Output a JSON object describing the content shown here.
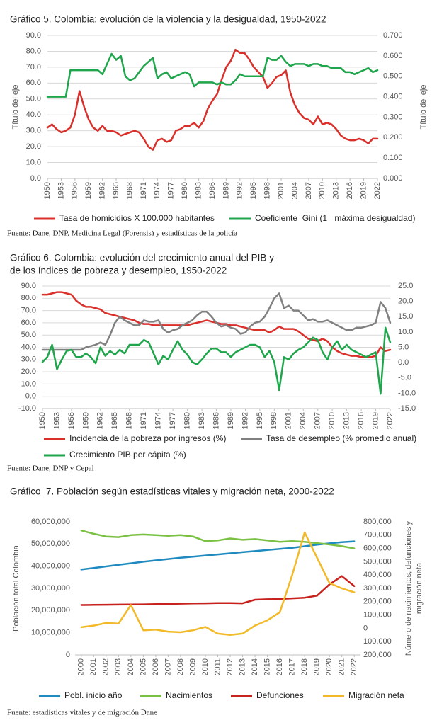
{
  "charts": [
    {
      "type": "line",
      "title": [
        "Gráfico 5. Colombia: evolución de la violencia y la desigualdad, 1950-2022"
      ],
      "y_label": "Título del eje",
      "y2_label": "Título del eje",
      "x": [
        1950,
        1951,
        1952,
        1953,
        1954,
        1955,
        1956,
        1957,
        1958,
        1959,
        1960,
        1961,
        1962,
        1963,
        1964,
        1965,
        1966,
        1967,
        1968,
        1969,
        1970,
        1971,
        1972,
        1973,
        1974,
        1975,
        1976,
        1977,
        1978,
        1979,
        1980,
        1981,
        1982,
        1983,
        1984,
        1985,
        1986,
        1987,
        1988,
        1989,
        1990,
        1991,
        1992,
        1993,
        1994,
        1995,
        1996,
        1997,
        1998,
        1999,
        2000,
        2001,
        2002,
        2003,
        2004,
        2005,
        2006,
        2007,
        2008,
        2009,
        2010,
        2011,
        2012,
        2013,
        2014,
        2015,
        2016,
        2017,
        2018,
        2019,
        2020,
        2021,
        2022
      ],
      "xlim": [
        1950,
        2022
      ],
      "xticks": [
        1950,
        1953,
        1956,
        1959,
        1962,
        1965,
        1968,
        1971,
        1974,
        1977,
        1980,
        1983,
        1986,
        1989,
        1992,
        1995,
        1998,
        2001,
        2004,
        2007,
        2010,
        2013,
        2016,
        2019,
        2022
      ],
      "ylim": [
        0,
        90
      ],
      "yticks": [
        {
          "value": 0,
          "label": "0.0"
        },
        {
          "value": 10,
          "label": "10.0"
        },
        {
          "value": 20,
          "label": "20.0"
        },
        {
          "value": 30,
          "label": "30.0"
        },
        {
          "value": 40,
          "label": "40.0"
        },
        {
          "value": 50,
          "label": "50.0"
        },
        {
          "value": 60,
          "label": "60.0"
        },
        {
          "value": 70,
          "label": "70.0"
        },
        {
          "value": 80,
          "label": "80.0"
        },
        {
          "value": 90,
          "label": "90.0"
        }
      ],
      "y2lim": [
        0,
        0.7
      ],
      "y2ticks": [
        {
          "value": 0,
          "label": "0.000"
        },
        {
          "value": 0.1,
          "label": "0.100"
        },
        {
          "value": 0.2,
          "label": "0.200"
        },
        {
          "value": 0.3,
          "label": "0.300"
        },
        {
          "value": 0.4,
          "label": "0.400"
        },
        {
          "value": 0.5,
          "label": "0.500"
        },
        {
          "value": 0.6,
          "label": "0.600"
        },
        {
          "value": 0.7,
          "label": "0.700"
        }
      ],
      "grid": true,
      "series": [
        {
          "name": "Tasa de homicidios X 100.000 habitantes",
          "color": "#d9302b",
          "values": [
            32,
            34,
            31,
            29,
            30,
            32,
            40,
            55,
            45,
            37,
            32,
            30,
            33,
            30,
            30,
            29,
            27,
            28,
            29,
            30,
            29,
            25,
            20,
            18,
            24,
            25,
            23,
            24,
            30,
            31,
            33,
            33,
            35,
            32,
            36,
            44,
            49,
            53,
            62,
            70,
            74,
            81,
            79,
            79,
            75,
            70,
            67,
            64,
            57,
            60,
            64,
            65,
            68,
            54,
            46,
            41,
            38,
            37,
            34,
            39,
            34,
            35,
            34,
            31,
            27,
            25,
            24,
            24,
            25,
            24,
            22,
            25,
            25
          ]
        },
        {
          "name": "Coeficiente  Gini (1= máxima desigualdad)",
          "color": "#1fa54b",
          "axis": "y2",
          "values": [
            0.4,
            0.4,
            0.4,
            0.4,
            0.4,
            0.53,
            0.53,
            0.53,
            0.53,
            0.53,
            0.53,
            0.53,
            0.51,
            0.56,
            0.61,
            0.58,
            0.6,
            0.5,
            0.48,
            0.49,
            0.52,
            0.55,
            0.57,
            0.59,
            0.49,
            0.51,
            0.52,
            0.49,
            0.5,
            0.51,
            0.52,
            0.51,
            0.45,
            0.47,
            0.47,
            0.47,
            0.47,
            0.46,
            0.47,
            0.46,
            0.46,
            0.48,
            0.51,
            0.5,
            0.5,
            0.5,
            0.5,
            0.5,
            0.59,
            0.58,
            0.58,
            0.6,
            0.57,
            0.55,
            0.56,
            0.56,
            0.56,
            0.55,
            0.56,
            0.56,
            0.55,
            0.55,
            0.54,
            0.54,
            0.54,
            0.52,
            0.52,
            0.51,
            0.52,
            0.53,
            0.54,
            0.52,
            0.53
          ]
        }
      ],
      "source": "Fuente: Dane, DNP, Medicina Legal (Forensis) y estadísticas de la policía"
    },
    {
      "type": "line",
      "title": [
        "Gráfico 6. Colombia: evolución del crecimiento anual del PIB y",
        "de los índices de pobreza y desempleo, 1950-2022"
      ],
      "x": [
        1950,
        1951,
        1952,
        1953,
        1954,
        1955,
        1956,
        1957,
        1958,
        1959,
        1960,
        1961,
        1962,
        1963,
        1964,
        1965,
        1966,
        1967,
        1968,
        1969,
        1970,
        1971,
        1972,
        1973,
        1974,
        1975,
        1976,
        1977,
        1978,
        1979,
        1980,
        1981,
        1982,
        1983,
        1984,
        1985,
        1986,
        1987,
        1988,
        1989,
        1990,
        1991,
        1992,
        1993,
        1994,
        1995,
        1996,
        1997,
        1998,
        1999,
        2000,
        2001,
        2002,
        2003,
        2004,
        2005,
        2006,
        2007,
        2008,
        2009,
        2010,
        2011,
        2012,
        2013,
        2014,
        2015,
        2016,
        2017,
        2018,
        2019,
        2020,
        2021,
        2022
      ],
      "xlim": [
        1950,
        2022
      ],
      "xticks": [
        1950,
        1953,
        1956,
        1959,
        1962,
        1965,
        1968,
        1971,
        1974,
        1977,
        1980,
        1983,
        1986,
        1989,
        1992,
        1995,
        1998,
        2001,
        2004,
        2007,
        2010,
        2013,
        2016,
        2019,
        2022
      ],
      "ylim": [
        -10,
        90
      ],
      "yticks": [
        {
          "value": -10,
          "label": "-10.0"
        },
        {
          "value": 0,
          "label": "0.0"
        },
        {
          "value": 10,
          "label": "10.0"
        },
        {
          "value": 20,
          "label": "20.0"
        },
        {
          "value": 30,
          "label": "30.0"
        },
        {
          "value": 40,
          "label": "40.0"
        },
        {
          "value": 50,
          "label": "50.0"
        },
        {
          "value": 60,
          "label": "60.0"
        },
        {
          "value": 70,
          "label": "70.0"
        },
        {
          "value": 80,
          "label": "80.0"
        },
        {
          "value": 90,
          "label": "90.0"
        }
      ],
      "y2lim": [
        -15,
        25
      ],
      "y2ticks": [
        {
          "value": -15,
          "label": "-15.0"
        },
        {
          "value": -10,
          "label": "-10.0"
        },
        {
          "value": -5,
          "label": "-5.0"
        },
        {
          "value": 0,
          "label": "0.0"
        },
        {
          "value": 5,
          "label": "5.0"
        },
        {
          "value": 10,
          "label": "10.0"
        },
        {
          "value": 15,
          "label": "15.0"
        },
        {
          "value": 20,
          "label": "20.0"
        },
        {
          "value": 25,
          "label": "25.0"
        }
      ],
      "grid": true,
      "series": [
        {
          "name": "Incidencia de la pobreza por ingresos (%)",
          "color": "#d9302b",
          "values": [
            83,
            83,
            84,
            85,
            85,
            84,
            83,
            78,
            75,
            73,
            73,
            72,
            71,
            68,
            67,
            66,
            65,
            64,
            63,
            62,
            60,
            59,
            59,
            58,
            58,
            58,
            58,
            58,
            58,
            58,
            58,
            59,
            60,
            61,
            62,
            61,
            60,
            59,
            59,
            58,
            58,
            57,
            56,
            55,
            54,
            54,
            54,
            52,
            54,
            57,
            55,
            55,
            55,
            53,
            50,
            47,
            46,
            45,
            47,
            45,
            40,
            37,
            35,
            34,
            33,
            33,
            32,
            32,
            32,
            33,
            40,
            37,
            38
          ]
        },
        {
          "name": "Tasa de desempleo (% promedio anual)",
          "color": "#808080",
          "axis": "y2",
          "values": [
            4.2,
            4.2,
            4.2,
            4.2,
            4.2,
            4.2,
            4.2,
            4.2,
            4.2,
            5.0,
            5.4,
            5.8,
            6.6,
            5.8,
            9.0,
            13.0,
            15.0,
            13.8,
            13.0,
            12.2,
            12.2,
            13.8,
            13.4,
            13.4,
            13.8,
            11.0,
            9.8,
            10.6,
            11.0,
            12.2,
            13.0,
            13.8,
            15.4,
            16.6,
            16.6,
            15.0,
            13.0,
            11.8,
            12.2,
            11.4,
            11.0,
            9.4,
            9.8,
            11.8,
            13.0,
            13.4,
            15.0,
            17.8,
            21.0,
            22.6,
            17.8,
            18.6,
            17.0,
            17.0,
            15.4,
            13.8,
            14.2,
            13.4,
            13.4,
            13.8,
            13.0,
            12.2,
            11.4,
            10.6,
            10.6,
            11.4,
            11.4,
            11.8,
            12.2,
            13.0,
            19.8,
            17.8,
            13.0
          ]
        },
        {
          "name": "Crecimiento PIB per cápita (%)",
          "color": "#1fa54b",
          "axis": "y2",
          "values": [
            0.2,
            1.8,
            5.8,
            -2.2,
            1.0,
            3.8,
            4.2,
            1.8,
            1.8,
            3.0,
            1.8,
            -0.2,
            5.0,
            2.2,
            3.8,
            2.6,
            4.2,
            3.0,
            5.8,
            5.8,
            5.8,
            7.4,
            6.6,
            3.0,
            -0.6,
            2.2,
            1.0,
            4.2,
            7.0,
            4.2,
            2.6,
            0.2,
            -0.6,
            1.0,
            3.0,
            4.6,
            4.6,
            3.4,
            3.4,
            1.8,
            3.4,
            4.2,
            5.0,
            5.8,
            5.8,
            5.0,
            1.8,
            3.8,
            0.2,
            -9.0,
            1.8,
            1.0,
            3.0,
            4.2,
            5.0,
            6.6,
            8.2,
            7.4,
            3.4,
            1.0,
            5.0,
            7.0,
            4.2,
            5.8,
            4.2,
            3.4,
            2.6,
            1.8,
            2.6,
            3.4,
            -10.2,
            11.4,
            6.6
          ]
        }
      ],
      "source": "Fuente: Dane, DNP y Cepal"
    },
    {
      "type": "line",
      "title": [
        "Gráfico  7. Población según estadísticas vitales y migración neta, 2000-2022"
      ],
      "y_label": "Población total Colombia",
      "y2_label": [
        "Número de nacimientos, defunciones y",
        "migración neta"
      ],
      "categories": [
        "2000",
        "2001",
        "2002",
        "2003",
        "2004",
        "2005",
        "2006",
        "2007",
        "2008",
        "2009",
        "2010",
        "2011",
        "2012",
        "2013",
        "2014",
        "2015",
        "2016",
        "2017",
        "2018",
        "2019",
        "2020",
        "2021",
        "2022"
      ],
      "ylim": [
        0,
        60000000
      ],
      "yticks": [
        0,
        {
          "value": 10000000,
          "label": "10,000,000"
        },
        {
          "value": 20000000,
          "label": "20,000,000"
        },
        {
          "value": 30000000,
          "label": "30,000,000"
        },
        {
          "value": 40000000,
          "label": "40,000,000"
        },
        {
          "value": 50000000,
          "label": "50,000,000"
        },
        {
          "value": 60000000,
          "label": "60,000,000"
        }
      ],
      "y2lim": [
        -200000,
        800000
      ],
      "y2ticks": [
        {
          "value": -200000,
          "label": "200,000"
        },
        {
          "value": -100000,
          "label": "100,000"
        },
        0,
        {
          "value": 100000,
          "label": "100,000"
        },
        {
          "value": 200000,
          "label": "200,000"
        },
        {
          "value": 300000,
          "label": "300,000"
        },
        {
          "value": 400000,
          "label": "400,000"
        },
        {
          "value": 500000,
          "label": "500,000"
        },
        {
          "value": 600000,
          "label": "600,000"
        },
        {
          "value": 700000,
          "label": "700,000"
        },
        {
          "value": 800000,
          "label": "800,000"
        }
      ],
      "grid": false,
      "series": [
        {
          "name": "Pobl. inicio año",
          "color": "#1f8ac0",
          "values": [
            38500000,
            39200000,
            39900000,
            40600000,
            41300000,
            42000000,
            42600000,
            43200000,
            43800000,
            44300000,
            44800000,
            45300000,
            45800000,
            46300000,
            46800000,
            47300000,
            47800000,
            48300000,
            49000000,
            49700000,
            50300000,
            50800000,
            51200000
          ]
        },
        {
          "name": "Nacimientos",
          "color": "#7ac143",
          "axis": "y2",
          "values": [
            735000,
            710000,
            690000,
            685000,
            700000,
            705000,
            700000,
            695000,
            700000,
            690000,
            655000,
            660000,
            675000,
            665000,
            670000,
            660000,
            650000,
            655000,
            650000,
            640000,
            630000,
            617000,
            600000
          ]
        },
        {
          "name": "Defunciones",
          "color": "#c8221f",
          "axis": "y2",
          "values": [
            175000,
            176000,
            177000,
            178000,
            179000,
            180000,
            182000,
            183000,
            185000,
            187000,
            188000,
            190000,
            190000,
            188000,
            215000,
            218000,
            220000,
            225000,
            230000,
            245000,
            330000,
            392000,
            317000
          ]
        },
        {
          "name": "Migración neta",
          "color": "#f2b928",
          "axis": "y2",
          "values": [
            8000,
            20000,
            40000,
            35000,
            175000,
            -15000,
            -10000,
            -25000,
            -30000,
            -15000,
            10000,
            -40000,
            -50000,
            -40000,
            20000,
            60000,
            120000,
            400000,
            720000,
            530000,
            340000,
            300000,
            270000
          ]
        }
      ],
      "source": "Fuente: estadísticas vitales y de migración Dane"
    }
  ]
}
